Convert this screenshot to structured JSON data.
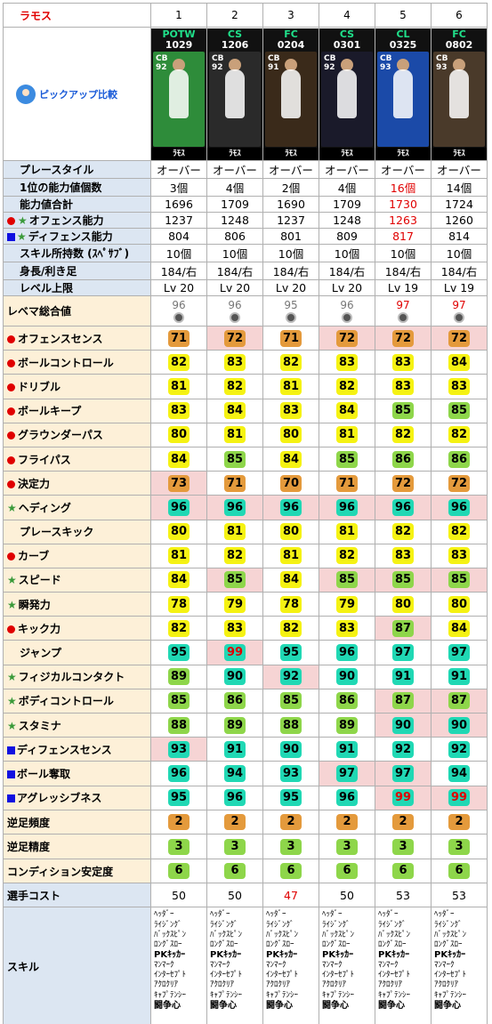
{
  "title": "ラモス",
  "pickup_label": "ピックアップ比較",
  "columns": [
    {
      "num": "1",
      "event": "POTW",
      "code": "1029",
      "rating": "92",
      "pos": "CB",
      "name": "ﾗﾓｽ",
      "ev_color": "#1fe08a",
      "bg": "#2e8c3a"
    },
    {
      "num": "2",
      "event": "CS",
      "code": "1206",
      "rating": "92",
      "pos": "CB",
      "name": "ﾗﾓｽ",
      "ev_color": "#1fe08a",
      "bg": "#2a2a2a"
    },
    {
      "num": "3",
      "event": "FC",
      "code": "0204",
      "rating": "91",
      "pos": "CB",
      "name": "ﾗﾓｽ",
      "ev_color": "#1fe08a",
      "bg": "#3a2a1a"
    },
    {
      "num": "4",
      "event": "CS",
      "code": "0301",
      "rating": "92",
      "pos": "CB",
      "name": "ﾗﾓｽ",
      "ev_color": "#1fe08a",
      "bg": "#1a1a2a"
    },
    {
      "num": "5",
      "event": "CL",
      "code": "0325",
      "rating": "93",
      "pos": "CB",
      "name": "ﾗﾓｽ",
      "ev_color": "#1fe08a",
      "bg": "#1b4aa8"
    },
    {
      "num": "6",
      "event": "FC",
      "code": "0802",
      "rating": "93",
      "pos": "CB",
      "name": "ﾗﾓｽ",
      "ev_color": "#1fe08a",
      "bg": "#4a3a2a"
    }
  ],
  "info_rows": [
    {
      "label": "プレースタイル",
      "icon": "none",
      "values": [
        "オーバー",
        "オーバー",
        "オーバー",
        "オーバー",
        "オーバー",
        "オーバー"
      ],
      "red": []
    },
    {
      "label": "1位の能力値個数",
      "icon": "none",
      "values": [
        "3個",
        "4個",
        "2個",
        "4個",
        "16個",
        "14個"
      ],
      "red": [
        4
      ]
    },
    {
      "label": "能力値合計",
      "icon": "none",
      "values": [
        "1696",
        "1709",
        "1690",
        "1709",
        "1730",
        "1724"
      ],
      "red": [
        4
      ]
    },
    {
      "label": "オフェンス能力",
      "icon": "dot-star",
      "values": [
        "1237",
        "1248",
        "1237",
        "1248",
        "1263",
        "1260"
      ],
      "red": [
        4
      ]
    },
    {
      "label": "ディフェンス能力",
      "icon": "sq-star",
      "values": [
        "804",
        "806",
        "801",
        "809",
        "817",
        "814"
      ],
      "red": [
        4
      ]
    },
    {
      "label": "スキル所持数 (ｽﾍﾟｻﾌﾞ)",
      "icon": "none",
      "values": [
        "10個",
        "10個",
        "10個",
        "10個",
        "10個",
        "10個"
      ],
      "red": []
    },
    {
      "label": "身長/利き足",
      "icon": "none",
      "values": [
        "184/右",
        "184/右",
        "184/右",
        "184/右",
        "184/右",
        "184/右"
      ],
      "red": []
    },
    {
      "label": "レベル上限",
      "icon": "none",
      "values": [
        "Lv 20",
        "Lv 20",
        "Lv 20",
        "Lv 20",
        "Lv 19",
        "Lv 19"
      ],
      "red": []
    }
  ],
  "rating_row": {
    "label": "レベマ総合値",
    "values": [
      "96",
      "96",
      "95",
      "96",
      "97",
      "97"
    ],
    "red": [
      4,
      5
    ]
  },
  "stat_rows": [
    {
      "label": "オフェンスセンス",
      "icon": "dot",
      "values": [
        71,
        72,
        71,
        72,
        72,
        72
      ],
      "pink": [
        1,
        3,
        4,
        5
      ]
    },
    {
      "label": "ボールコントロール",
      "icon": "dot",
      "values": [
        82,
        83,
        82,
        83,
        83,
        84
      ],
      "pink": []
    },
    {
      "label": "ドリブル",
      "icon": "dot",
      "values": [
        81,
        82,
        81,
        82,
        83,
        83
      ],
      "pink": []
    },
    {
      "label": "ボールキープ",
      "icon": "dot",
      "values": [
        83,
        84,
        83,
        84,
        85,
        85
      ],
      "pink": []
    },
    {
      "label": "グラウンダーパス",
      "icon": "dot",
      "values": [
        80,
        81,
        80,
        81,
        82,
        82
      ],
      "pink": []
    },
    {
      "label": "フライパス",
      "icon": "dot",
      "values": [
        84,
        85,
        84,
        85,
        86,
        86
      ],
      "pink": []
    },
    {
      "label": "決定力",
      "icon": "dot",
      "values": [
        73,
        71,
        70,
        71,
        72,
        72
      ],
      "pink": [
        0
      ]
    },
    {
      "label": "ヘディング",
      "icon": "star",
      "values": [
        96,
        96,
        96,
        96,
        96,
        96
      ],
      "pink": [
        0,
        1,
        2,
        3,
        4,
        5
      ]
    },
    {
      "label": "プレースキック",
      "icon": "none",
      "values": [
        80,
        81,
        80,
        81,
        82,
        82
      ],
      "pink": []
    },
    {
      "label": "カーブ",
      "icon": "dot",
      "values": [
        81,
        82,
        81,
        82,
        83,
        83
      ],
      "pink": []
    },
    {
      "label": "スピード",
      "icon": "star",
      "values": [
        84,
        85,
        84,
        85,
        85,
        85
      ],
      "pink": [
        1,
        3,
        4,
        5
      ]
    },
    {
      "label": "瞬発力",
      "icon": "star",
      "values": [
        78,
        79,
        78,
        79,
        80,
        80
      ],
      "pink": []
    },
    {
      "label": "キック力",
      "icon": "dot",
      "values": [
        82,
        83,
        82,
        83,
        87,
        84
      ],
      "pink": [
        4
      ]
    },
    {
      "label": "ジャンプ",
      "icon": "none",
      "values": [
        95,
        99,
        95,
        96,
        97,
        97
      ],
      "pink": [
        1
      ]
    },
    {
      "label": "フィジカルコンタクト",
      "icon": "star",
      "values": [
        89,
        90,
        92,
        90,
        91,
        91
      ],
      "pink": [
        2
      ]
    },
    {
      "label": "ボディコントロール",
      "icon": "star",
      "values": [
        85,
        86,
        85,
        86,
        87,
        87
      ],
      "pink": [
        4,
        5
      ]
    },
    {
      "label": "スタミナ",
      "icon": "star",
      "values": [
        88,
        89,
        88,
        89,
        90,
        90
      ],
      "pink": [
        4,
        5
      ]
    },
    {
      "label": "ディフェンスセンス",
      "icon": "sq",
      "values": [
        93,
        91,
        90,
        91,
        92,
        92
      ],
      "pink": [
        0
      ]
    },
    {
      "label": "ボール奪取",
      "icon": "sq",
      "values": [
        96,
        94,
        93,
        97,
        97,
        94
      ],
      "pink": [
        3,
        4
      ]
    },
    {
      "label": "アグレッシブネス",
      "icon": "sq",
      "values": [
        95,
        96,
        95,
        96,
        99,
        99
      ],
      "pink": [
        4,
        5
      ]
    }
  ],
  "small_rows": [
    {
      "label": "逆足頻度",
      "values": [
        "2",
        "2",
        "2",
        "2",
        "2",
        "2"
      ],
      "color": "or"
    },
    {
      "label": "逆足精度",
      "values": [
        "3",
        "3",
        "3",
        "3",
        "3",
        "3"
      ],
      "color": "gr"
    },
    {
      "label": "コンディション安定度",
      "values": [
        "6",
        "6",
        "6",
        "6",
        "6",
        "6"
      ],
      "color": "gr"
    }
  ],
  "cost_row": {
    "label": "選手コスト",
    "values": [
      "50",
      "50",
      "47",
      "50",
      "53",
      "53"
    ],
    "red": [
      2
    ]
  },
  "skills_label": "スキル",
  "skills": [
    "ﾍｯﾀﾞｰ",
    "ﾗｲｼﾞﾝｸﾞ",
    "ﾊﾞｯｸｽﾋﾟﾝ",
    "ﾛﾝｸﾞｽﾛｰ",
    "PKｷｯｶｰ",
    "ﾏﾝﾏｰｸ",
    "ｲﾝﾀｰｾﾌﾟﾄ",
    "ｱｸﾛｸﾘｱ",
    "ｷｬﾌﾟﾃﾝｼｰ",
    "闘争心"
  ],
  "colors": {
    "red": "#e00000",
    "orange": "#e49a3c",
    "yellow": "#f5f213",
    "green": "#8ed64a",
    "cyan": "#20d8b4",
    "label_blue": "#dce6f2",
    "label_peach": "#fdf0d8",
    "pink": "#f6d4d4"
  }
}
